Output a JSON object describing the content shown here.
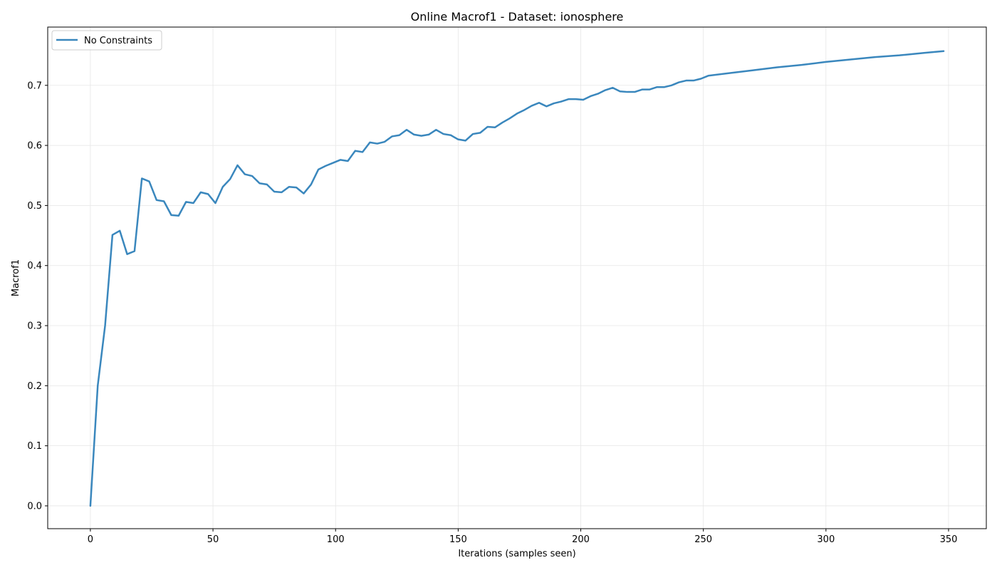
{
  "chart_data": {
    "type": "line",
    "title": "Online Macrof1 - Dataset: ionosphere",
    "xlabel": "Iterations (samples seen)",
    "ylabel": "Macrof1",
    "xlim": [
      -17.4,
      365.4
    ],
    "ylim": [
      -0.038,
      0.797
    ],
    "xticks": [
      0,
      50,
      100,
      150,
      200,
      250,
      300,
      350
    ],
    "yticks": [
      0.0,
      0.1,
      0.2,
      0.3,
      0.4,
      0.5,
      0.6,
      0.7
    ],
    "grid": true,
    "legend_position": "top-left",
    "series": [
      {
        "name": "No Constraints",
        "color": "#3a87bd",
        "x": [
          0,
          3,
          6,
          9,
          12,
          15,
          18,
          21,
          24,
          27,
          30,
          33,
          36,
          39,
          42,
          45,
          48,
          51,
          54,
          57,
          60,
          63,
          66,
          69,
          72,
          75,
          78,
          81,
          84,
          87,
          90,
          93,
          96,
          99,
          102,
          105,
          108,
          111,
          114,
          117,
          120,
          123,
          126,
          129,
          132,
          135,
          138,
          141,
          144,
          147,
          150,
          153,
          156,
          159,
          162,
          165,
          168,
          171,
          174,
          177,
          180,
          183,
          186,
          189,
          192,
          195,
          198,
          201,
          204,
          207,
          210,
          213,
          216,
          219,
          222,
          225,
          228,
          231,
          234,
          237,
          240,
          243,
          246,
          249,
          252,
          260,
          270,
          280,
          290,
          300,
          310,
          320,
          330,
          340,
          348
        ],
        "y": [
          0.0,
          0.2,
          0.3,
          0.451,
          0.458,
          0.419,
          0.424,
          0.545,
          0.54,
          0.509,
          0.507,
          0.484,
          0.483,
          0.506,
          0.504,
          0.522,
          0.519,
          0.504,
          0.531,
          0.544,
          0.567,
          0.552,
          0.549,
          0.537,
          0.535,
          0.523,
          0.522,
          0.531,
          0.53,
          0.52,
          0.535,
          0.56,
          0.566,
          0.571,
          0.576,
          0.574,
          0.591,
          0.589,
          0.605,
          0.603,
          0.606,
          0.615,
          0.617,
          0.626,
          0.618,
          0.616,
          0.618,
          0.626,
          0.619,
          0.617,
          0.61,
          0.608,
          0.619,
          0.621,
          0.631,
          0.63,
          0.638,
          0.645,
          0.653,
          0.659,
          0.666,
          0.671,
          0.665,
          0.67,
          0.673,
          0.677,
          0.677,
          0.676,
          0.682,
          0.686,
          0.692,
          0.696,
          0.69,
          0.689,
          0.689,
          0.693,
          0.693,
          0.697,
          0.697,
          0.7,
          0.705,
          0.708,
          0.708,
          0.711,
          0.716,
          0.72,
          0.725,
          0.73,
          0.734,
          0.739,
          0.743,
          0.747,
          0.75,
          0.754,
          0.757
        ]
      }
    ]
  }
}
